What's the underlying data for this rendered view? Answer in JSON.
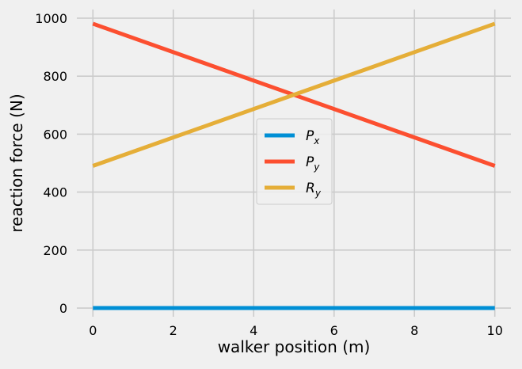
{
  "chart_data": {
    "type": "line",
    "xlabel": "walker position (m)",
    "ylabel": "reaction force (N)",
    "xlim": [
      -0.4,
      10.4
    ],
    "ylim": [
      -30,
      1030
    ],
    "x_ticks": [
      0,
      2,
      4,
      6,
      8,
      10
    ],
    "y_ticks": [
      0,
      200,
      400,
      600,
      800,
      1000
    ],
    "grid": true,
    "legend_position": "center",
    "style": "fivethirtyeight",
    "series": [
      {
        "name": "P",
        "subscript": "x",
        "color": "#008fd5",
        "x": [
          0,
          10
        ],
        "y": [
          0,
          0
        ]
      },
      {
        "name": "P",
        "subscript": "y",
        "color": "#fc4f30",
        "x": [
          0,
          10
        ],
        "y": [
          981,
          490.5
        ]
      },
      {
        "name": "R",
        "subscript": "y",
        "color": "#e5ae38",
        "x": [
          0,
          10
        ],
        "y": [
          490.5,
          981
        ]
      }
    ]
  }
}
